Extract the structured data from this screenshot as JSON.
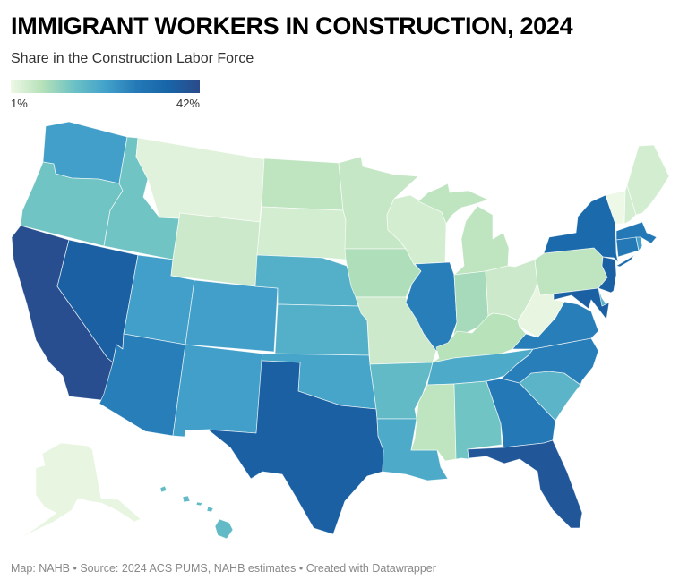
{
  "header": {
    "title": "IMMIGRANT WORKERS IN CONSTRUCTION, 2024",
    "subtitle": "Share in the Construction Labor Force"
  },
  "legend": {
    "min_label": "1%",
    "max_label": "42%",
    "min": 1,
    "max": 42,
    "colors": [
      "#eef8e6",
      "#b6e1b9",
      "#6cc2c4",
      "#43a2cb",
      "#2479b6",
      "#1765a8",
      "#2b4a8a"
    ]
  },
  "footer": "Map: NAHB • Source: 2024 ACS PUMS, NAHB estimates • Created with Datawrapper",
  "chart_data": {
    "type": "choropleth",
    "title": "IMMIGRANT WORKERS IN CONSTRUCTION, 2024",
    "subtitle": "Share in the Construction Labor Force",
    "unit": "%",
    "range": [
      1,
      42
    ],
    "values": {
      "CA": 41,
      "TX": 37,
      "FL": 39,
      "NV": 37,
      "AZ": 29,
      "UT": 24,
      "CO": 24,
      "NM": 24,
      "WA": 24,
      "OR": 17,
      "ID": 17,
      "MT": 3,
      "WY": 6,
      "ND": 8,
      "SD": 5,
      "NE": 21,
      "KS": 21,
      "OK": 23,
      "MN": 7,
      "IA": 10,
      "MO": 6,
      "AR": 19,
      "LA": 22,
      "WI": 5,
      "IL": 29,
      "MI": 8,
      "IN": 11,
      "OH": 6,
      "KY": 9,
      "TN": 22,
      "MS": 8,
      "AL": 17,
      "GA": 30,
      "SC": 20,
      "NC": 29,
      "VA": 29,
      "WV": 2,
      "PA": 8,
      "NY": 34,
      "NJ": 37,
      "DE": 20,
      "MD": 37,
      "CT": 30,
      "RI": 24,
      "MA": 30,
      "VT": 1,
      "NH": 5,
      "ME": 5,
      "AK": 2,
      "HI": 19
    }
  }
}
